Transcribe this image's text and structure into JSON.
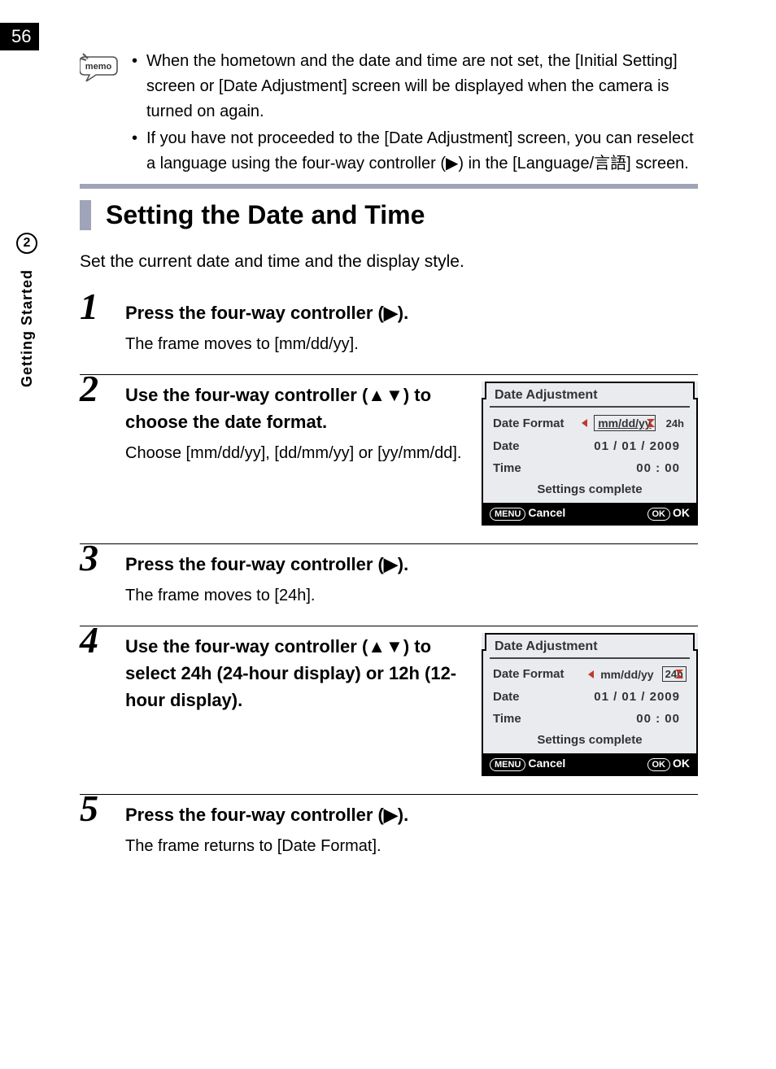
{
  "page_number": "56",
  "chapter_number": "2",
  "chapter_title": "Getting Started",
  "memo": {
    "items": [
      "When the hometown and the date and time are not set, the [Initial Setting] screen or [Date Adjustment] screen will be displayed when the camera is turned on again.",
      "If you have not proceeded to the [Date Adjustment] screen, you can reselect a language using the four-way controller (▶) in the [Language/言語] screen."
    ]
  },
  "section_title": "Setting the Date and Time",
  "intro": "Set the current date and time and the display style.",
  "colors": {
    "accent": "#9fa4b8",
    "screen_bg": "#e9ebef",
    "arrow_red": "#c0392b"
  },
  "screen": {
    "header": "Date Adjustment",
    "date_format_label": "Date Format",
    "date_format_value": "mm/dd/yy",
    "clock_mode": "24h",
    "date_label": "Date",
    "date_value": "01 / 01 / 2009",
    "time_label": "Time",
    "time_value": "00 : 00",
    "complete": "Settings complete",
    "menu_label": "MENU",
    "cancel": "Cancel",
    "ok_badge": "OK",
    "ok": "OK"
  },
  "steps": [
    {
      "num": "1",
      "title": "Press the four-way controller (▶).",
      "desc": "The frame moves to [mm/dd/yy].",
      "screen": null
    },
    {
      "num": "2",
      "title": "Use the four-way controller (▲▼) to choose the date format.",
      "desc": "Choose [mm/dd/yy], [dd/mm/yy] or [yy/mm/dd].",
      "screen": "format"
    },
    {
      "num": "3",
      "title": "Press the four-way controller (▶).",
      "desc": "The frame moves to [24h].",
      "screen": null
    },
    {
      "num": "4",
      "title": "Use the four-way controller (▲▼) to select 24h (24-hour display) or 12h (12-hour display).",
      "desc": "",
      "screen": "clock"
    },
    {
      "num": "5",
      "title": "Press the four-way controller (▶).",
      "desc": "The frame returns to [Date Format].",
      "screen": null
    }
  ]
}
